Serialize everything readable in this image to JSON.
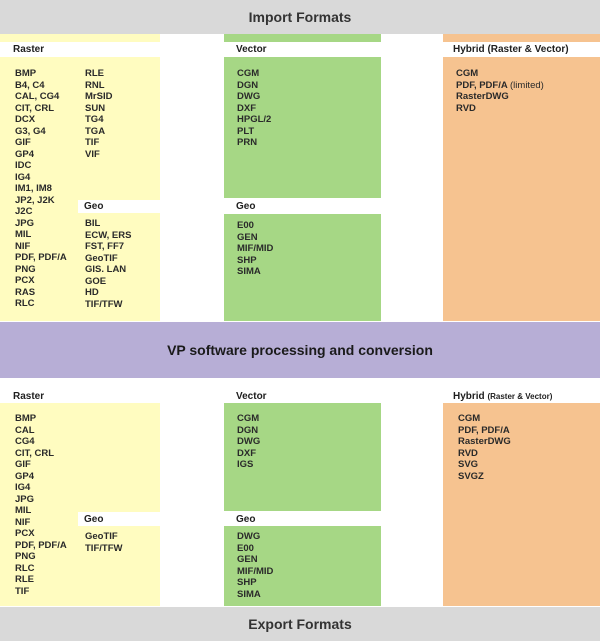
{
  "bands": {
    "import": "Import Formats",
    "process": "VP software processing and conversion",
    "export": "Export Formats"
  },
  "import": {
    "raster": {
      "title": "Raster",
      "col1": [
        "BMP",
        "B4, C4",
        "CAL, CG4",
        "CIT, CRL",
        "DCX",
        "G3, G4",
        "GIF",
        "GP4",
        "IDC",
        "IG4",
        "IM1, IM8",
        "JP2, J2K",
        "J2C",
        "JPG",
        "MIL",
        "NIF",
        "PDF, PDF/A",
        "PNG",
        "PCX",
        "RAS",
        "RLC"
      ],
      "col2": [
        "RLE",
        "RNL",
        "MrSID",
        "SUN",
        "TG4",
        "TGA",
        "TIF",
        "VIF"
      ],
      "geo_title": "Geo",
      "geo": [
        "BIL",
        "ECW, ERS",
        "FST, FF7",
        "GeoTIF",
        "GIS. LAN",
        "GOE",
        "HD",
        "TIF/TFW"
      ]
    },
    "vector": {
      "title": "Vector",
      "items": [
        "CGM",
        "DGN",
        "DWG",
        "DXF",
        "HPGL/2",
        "PLT",
        "PRN"
      ],
      "geo_title": "Geo",
      "geo": [
        "E00",
        "GEN",
        "MIF/MID",
        "SHP",
        "SIMA"
      ]
    },
    "hybrid": {
      "title": "Hybrid (Raster & Vector)",
      "item1": "CGM",
      "item2_main": "PDF, PDF/A",
      "item2_note": "(limited)",
      "item3": "RasterDWG",
      "item4": "RVD"
    }
  },
  "export": {
    "raster": {
      "title": "Raster",
      "col1": [
        "BMP",
        "CAL",
        "CG4",
        "CIT, CRL",
        "GIF",
        "GP4",
        "IG4",
        "JPG",
        "MIL",
        "NIF",
        "PCX",
        "PDF, PDF/A",
        "PNG",
        "RLC",
        "RLE",
        "TIF"
      ],
      "geo_title": "Geo",
      "geo": [
        "GeoTIF",
        "TIF/TFW"
      ]
    },
    "vector": {
      "title": "Vector",
      "items": [
        "CGM",
        "DGN",
        "DWG",
        "DXF",
        "IGS"
      ],
      "geo_title": "Geo",
      "geo": [
        "DWG",
        "E00",
        "GEN",
        "MIF/MID",
        "SHP",
        "SIMA"
      ]
    },
    "hybrid": {
      "title_main": "Hybrid",
      "title_sub": "(Raster & Vector)",
      "items": [
        "CGM",
        "PDF, PDF/A",
        "RasterDWG",
        "RVD",
        "SVG",
        "SVGZ"
      ]
    }
  }
}
